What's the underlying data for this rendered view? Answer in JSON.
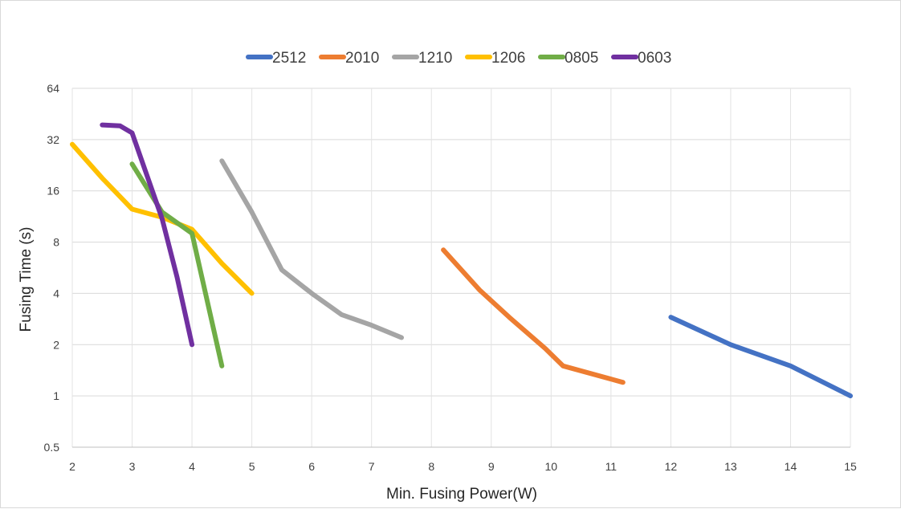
{
  "chart_data": {
    "type": "line",
    "xlabel": "Min. Fusing Power(W)",
    "ylabel": "Fusing Time (s)",
    "xlim": [
      2,
      15
    ],
    "ylim": [
      0.5,
      64
    ],
    "yscale": "log2",
    "x_ticks": [
      "2",
      "3",
      "4",
      "5",
      "6",
      "7",
      "8",
      "9",
      "10",
      "11",
      "12",
      "13",
      "14",
      "15"
    ],
    "y_ticks": [
      "0.5",
      "1",
      "2",
      "4",
      "8",
      "16",
      "32",
      "64"
    ],
    "grid": true,
    "legend_position": "top",
    "series": [
      {
        "name": "2512",
        "color": "#4472c4",
        "points": [
          [
            12,
            2.9
          ],
          [
            13,
            2.0
          ],
          [
            14,
            1.5
          ],
          [
            15,
            1.0
          ]
        ]
      },
      {
        "name": "2010",
        "color": "#ed7d31",
        "points": [
          [
            8.2,
            7.2
          ],
          [
            8.8,
            4.2
          ],
          [
            9.3,
            2.9
          ],
          [
            9.9,
            1.9
          ],
          [
            10.2,
            1.5
          ],
          [
            11.2,
            1.2
          ]
        ]
      },
      {
        "name": "1210",
        "color": "#a5a5a5",
        "points": [
          [
            4.5,
            24
          ],
          [
            5.0,
            12
          ],
          [
            5.5,
            5.5
          ],
          [
            6.0,
            4.0
          ],
          [
            6.5,
            3.0
          ],
          [
            7.0,
            2.6
          ],
          [
            7.5,
            2.2
          ]
        ]
      },
      {
        "name": "1206",
        "color": "#ffc000",
        "points": [
          [
            2.0,
            30
          ],
          [
            2.5,
            19
          ],
          [
            3.0,
            12.5
          ],
          [
            3.5,
            11.2
          ],
          [
            4.0,
            9.5
          ],
          [
            4.5,
            6.0
          ],
          [
            5.0,
            4.0
          ]
        ]
      },
      {
        "name": "0805",
        "color": "#70ad47",
        "points": [
          [
            3.0,
            23
          ],
          [
            3.5,
            12
          ],
          [
            4.0,
            9.0
          ],
          [
            4.5,
            1.5
          ]
        ]
      },
      {
        "name": "0603",
        "color": "#7030a0",
        "points": [
          [
            2.5,
            39
          ],
          [
            2.8,
            38.5
          ],
          [
            3.0,
            35
          ],
          [
            3.5,
            11
          ],
          [
            3.75,
            5.0
          ],
          [
            4.0,
            2.0
          ]
        ]
      }
    ]
  }
}
